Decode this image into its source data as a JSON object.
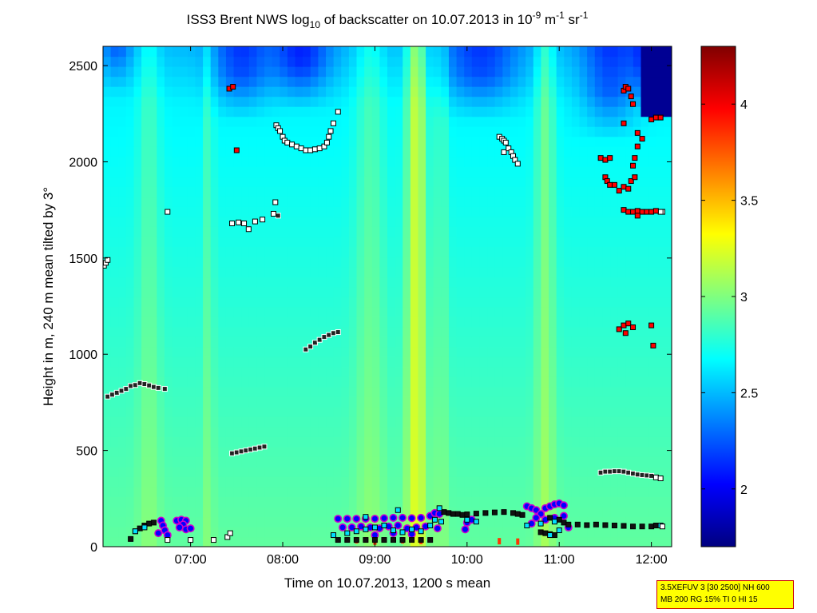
{
  "chart_data": {
    "type": "heatmap",
    "title": {
      "prefix": "ISS3 Brent NWS log",
      "sub": "10",
      "mid": " of backscatter on 10.07.2013 in 10",
      "exp1": "-9",
      "unit1": " m",
      "exp2": "-1",
      "unit2": " sr",
      "exp3": "-1"
    },
    "xlabel": "Time on 10.07.2013, 1200 s mean",
    "ylabel": "Height in m, 240 m mean tilted by 3°",
    "xlim_hours": [
      6.05,
      12.22
    ],
    "ylim": [
      0,
      2600
    ],
    "x_ticks": [
      {
        "value": 7,
        "label": "07:00"
      },
      {
        "value": 8,
        "label": "08:00"
      },
      {
        "value": 9,
        "label": "09:00"
      },
      {
        "value": 10,
        "label": "10:00"
      },
      {
        "value": 11,
        "label": "11:00"
      },
      {
        "value": 12,
        "label": "12:00"
      }
    ],
    "y_ticks": [
      {
        "value": 0,
        "label": "0"
      },
      {
        "value": 500,
        "label": "500"
      },
      {
        "value": 1000,
        "label": "1000"
      },
      {
        "value": 1500,
        "label": "1500"
      },
      {
        "value": 2000,
        "label": "2000"
      },
      {
        "value": 2500,
        "label": "2500"
      }
    ],
    "colorbar": {
      "colormap": "jet",
      "clim": [
        1.7,
        4.3
      ],
      "ticks": [
        {
          "value": 2,
          "label": "2"
        },
        {
          "value": 2.5,
          "label": "2.5"
        },
        {
          "value": 3,
          "label": "3"
        },
        {
          "value": 3.5,
          "label": "3.5"
        },
        {
          "value": 4,
          "label": "4"
        }
      ]
    },
    "field": {
      "base_low": 2.92,
      "base_high": 2.62,
      "plumes": [
        {
          "t": 6.55,
          "w": 0.12,
          "a": 0.18
        },
        {
          "t": 7.2,
          "w": 0.05,
          "a": 0.2
        },
        {
          "t": 8.95,
          "w": 0.16,
          "a": 0.2
        },
        {
          "t": 9.45,
          "w": 0.11,
          "a": 0.55
        },
        {
          "t": 9.72,
          "w": 0.07,
          "a": 0.18
        },
        {
          "t": 10.85,
          "w": 0.1,
          "a": 0.3
        }
      ],
      "blue_patches": [
        {
          "t": 6.2,
          "w": 0.15,
          "h": 2350,
          "a": 0.25
        },
        {
          "t": 7.55,
          "w": 0.3,
          "h": 2200,
          "a": 0.35
        },
        {
          "t": 8.2,
          "w": 0.3,
          "h": 2250,
          "a": 0.4
        },
        {
          "t": 10.15,
          "w": 0.4,
          "h": 2200,
          "a": 0.35
        },
        {
          "t": 11.55,
          "w": 0.3,
          "h": 2100,
          "a": 0.35
        },
        {
          "t": 12.05,
          "w": 0.22,
          "h": 2250,
          "a": 0.55
        }
      ],
      "dark_corner": {
        "t_start": 11.85,
        "h_start": 2250,
        "value": 1.75
      }
    },
    "layer_markers": {
      "white": [
        [
          6.06,
          1460
        ],
        [
          6.08,
          1475
        ],
        [
          6.1,
          1490
        ],
        [
          6.75,
          1740
        ],
        [
          7.45,
          1680
        ],
        [
          7.52,
          1685
        ],
        [
          7.58,
          1680
        ],
        [
          7.63,
          1650
        ],
        [
          7.7,
          1690
        ],
        [
          7.78,
          1700
        ],
        [
          7.9,
          1730
        ],
        [
          7.92,
          1790
        ],
        [
          7.93,
          2190
        ],
        [
          7.95,
          2175
        ],
        [
          7.97,
          2160
        ],
        [
          8.0,
          2130
        ],
        [
          8.02,
          2110
        ],
        [
          8.05,
          2100
        ],
        [
          8.1,
          2090
        ],
        [
          8.15,
          2080
        ],
        [
          8.2,
          2070
        ],
        [
          8.25,
          2060
        ],
        [
          8.3,
          2060
        ],
        [
          8.35,
          2065
        ],
        [
          8.4,
          2070
        ],
        [
          8.45,
          2080
        ],
        [
          8.48,
          2100
        ],
        [
          8.5,
          2130
        ],
        [
          8.52,
          2160
        ],
        [
          8.55,
          2200
        ],
        [
          8.6,
          2260
        ],
        [
          10.35,
          2130
        ],
        [
          10.38,
          2120
        ],
        [
          10.4,
          2110
        ],
        [
          10.42,
          2100
        ],
        [
          10.4,
          2050
        ],
        [
          10.45,
          2070
        ],
        [
          10.48,
          2050
        ],
        [
          10.5,
          2030
        ],
        [
          10.52,
          2010
        ],
        [
          10.55,
          1990
        ],
        [
          12.12,
          1740
        ],
        [
          12.1,
          1740
        ],
        [
          6.75,
          35
        ],
        [
          7.0,
          35
        ],
        [
          7.25,
          35
        ],
        [
          7.4,
          50
        ],
        [
          7.43,
          70
        ],
        [
          12.05,
          360
        ],
        [
          12.1,
          355
        ],
        [
          12.12,
          105
        ]
      ],
      "red": [
        [
          7.42,
          2380
        ],
        [
          7.46,
          2390
        ],
        [
          7.5,
          2060
        ],
        [
          11.45,
          2020
        ],
        [
          11.5,
          2010
        ],
        [
          11.55,
          2020
        ],
        [
          11.5,
          1920
        ],
        [
          11.52,
          1900
        ],
        [
          11.55,
          1880
        ],
        [
          11.6,
          1880
        ],
        [
          11.65,
          1850
        ],
        [
          11.7,
          1870
        ],
        [
          11.75,
          1860
        ],
        [
          11.78,
          1900
        ],
        [
          11.82,
          1920
        ],
        [
          11.7,
          2370
        ],
        [
          11.72,
          2390
        ],
        [
          11.75,
          2380
        ],
        [
          11.78,
          2340
        ],
        [
          11.8,
          2300
        ],
        [
          11.85,
          2150
        ],
        [
          11.9,
          2120
        ],
        [
          11.85,
          2080
        ],
        [
          11.82,
          2020
        ],
        [
          11.8,
          1980
        ],
        [
          12.0,
          2220
        ],
        [
          12.05,
          2230
        ],
        [
          12.1,
          2230
        ],
        [
          11.7,
          2200
        ],
        [
          11.7,
          1750
        ],
        [
          11.75,
          1740
        ],
        [
          11.8,
          1740
        ],
        [
          11.85,
          1745
        ],
        [
          11.9,
          1740
        ],
        [
          11.95,
          1740
        ],
        [
          12.0,
          1740
        ],
        [
          12.05,
          1745
        ],
        [
          11.85,
          1720
        ],
        [
          11.65,
          1130
        ],
        [
          11.7,
          1150
        ],
        [
          11.75,
          1160
        ],
        [
          11.8,
          1140
        ],
        [
          11.72,
          1110
        ],
        [
          12.0,
          1150
        ],
        [
          12.02,
          1045
        ]
      ],
      "black_white": [
        [
          6.1,
          780
        ],
        [
          6.15,
          790
        ],
        [
          6.2,
          800
        ],
        [
          6.25,
          810
        ],
        [
          6.3,
          820
        ],
        [
          6.35,
          835
        ],
        [
          6.4,
          840
        ],
        [
          6.45,
          850
        ],
        [
          6.5,
          845
        ],
        [
          6.55,
          838
        ],
        [
          6.6,
          830
        ],
        [
          6.65,
          825
        ],
        [
          6.72,
          820
        ],
        [
          7.45,
          485
        ],
        [
          7.5,
          490
        ],
        [
          7.55,
          495
        ],
        [
          7.6,
          500
        ],
        [
          7.65,
          505
        ],
        [
          7.7,
          510
        ],
        [
          7.75,
          515
        ],
        [
          7.8,
          520
        ],
        [
          7.95,
          1720
        ],
        [
          8.25,
          1025
        ],
        [
          8.3,
          1040
        ],
        [
          8.35,
          1060
        ],
        [
          8.4,
          1075
        ],
        [
          8.45,
          1090
        ],
        [
          8.5,
          1100
        ],
        [
          8.55,
          1110
        ],
        [
          8.6,
          1115
        ],
        [
          11.45,
          385
        ],
        [
          11.5,
          390
        ],
        [
          11.55,
          390
        ],
        [
          11.6,
          392
        ],
        [
          11.65,
          392
        ],
        [
          11.7,
          390
        ],
        [
          11.75,
          385
        ],
        [
          11.8,
          380
        ],
        [
          11.85,
          375
        ],
        [
          11.9,
          372
        ],
        [
          11.95,
          370
        ],
        [
          12.0,
          368
        ]
      ],
      "black": [
        [
          6.35,
          40
        ],
        [
          6.4,
          80
        ],
        [
          6.45,
          95
        ],
        [
          6.5,
          110
        ],
        [
          6.55,
          120
        ],
        [
          6.6,
          125
        ],
        [
          8.6,
          35
        ],
        [
          8.7,
          35
        ],
        [
          8.8,
          35
        ],
        [
          8.9,
          35
        ],
        [
          9.0,
          35
        ],
        [
          9.1,
          35
        ],
        [
          9.2,
          35
        ],
        [
          9.3,
          35
        ],
        [
          9.4,
          35
        ],
        [
          9.5,
          35
        ],
        [
          9.6,
          35
        ],
        [
          9.75,
          180
        ],
        [
          9.8,
          175
        ],
        [
          9.85,
          170
        ],
        [
          9.9,
          170
        ],
        [
          9.95,
          165
        ],
        [
          10.0,
          168
        ],
        [
          10.1,
          172
        ],
        [
          10.2,
          175
        ],
        [
          10.3,
          178
        ],
        [
          10.4,
          180
        ],
        [
          10.5,
          175
        ],
        [
          10.55,
          170
        ],
        [
          10.6,
          165
        ],
        [
          10.9,
          150
        ],
        [
          11.0,
          140
        ],
        [
          11.05,
          125
        ],
        [
          11.1,
          115
        ],
        [
          11.2,
          115
        ],
        [
          11.3,
          112
        ],
        [
          11.4,
          115
        ],
        [
          11.5,
          112
        ],
        [
          11.6,
          110
        ],
        [
          11.7,
          108
        ],
        [
          11.8,
          105
        ],
        [
          11.9,
          105
        ],
        [
          12.0,
          105
        ],
        [
          12.05,
          110
        ],
        [
          10.8,
          75
        ],
        [
          10.85,
          70
        ],
        [
          10.9,
          65
        ],
        [
          10.95,
          60
        ]
      ],
      "cyan": [
        [
          6.4,
          80
        ],
        [
          6.5,
          100
        ],
        [
          8.55,
          60
        ],
        [
          8.7,
          70
        ],
        [
          8.8,
          80
        ],
        [
          8.9,
          90
        ],
        [
          9.0,
          100
        ],
        [
          9.1,
          110
        ],
        [
          9.2,
          85
        ],
        [
          9.3,
          75
        ],
        [
          9.4,
          90
        ],
        [
          9.5,
          80
        ],
        [
          9.6,
          110
        ],
        [
          9.65,
          140
        ],
        [
          9.72,
          130
        ],
        [
          9.7,
          200
        ],
        [
          8.9,
          155
        ],
        [
          10.0,
          140
        ],
        [
          10.65,
          110
        ],
        [
          10.8,
          120
        ],
        [
          10.95,
          130
        ],
        [
          11.0,
          85
        ],
        [
          10.9,
          60
        ],
        [
          12.1,
          110
        ],
        [
          9.25,
          190
        ],
        [
          10.1,
          130
        ]
      ],
      "purple_dots": [
        [
          6.68,
          135
        ],
        [
          6.7,
          110
        ],
        [
          6.72,
          85
        ],
        [
          6.65,
          70
        ],
        [
          6.75,
          60
        ],
        [
          6.85,
          135
        ],
        [
          6.9,
          140
        ],
        [
          6.95,
          135
        ],
        [
          6.92,
          115
        ],
        [
          6.88,
          100
        ],
        [
          6.95,
          90
        ],
        [
          7.0,
          95
        ],
        [
          8.6,
          145
        ],
        [
          8.7,
          145
        ],
        [
          8.8,
          145
        ],
        [
          8.9,
          145
        ],
        [
          9.0,
          145
        ],
        [
          9.1,
          148
        ],
        [
          9.2,
          150
        ],
        [
          9.3,
          150
        ],
        [
          9.4,
          148
        ],
        [
          9.5,
          150
        ],
        [
          9.6,
          160
        ],
        [
          9.65,
          175
        ],
        [
          9.7,
          170
        ],
        [
          8.65,
          100
        ],
        [
          8.75,
          100
        ],
        [
          8.85,
          105
        ],
        [
          8.95,
          100
        ],
        [
          9.05,
          95
        ],
        [
          9.15,
          105
        ],
        [
          9.25,
          110
        ],
        [
          9.35,
          95
        ],
        [
          9.45,
          100
        ],
        [
          9.55,
          105
        ],
        [
          9.68,
          95
        ],
        [
          9.0,
          60
        ],
        [
          9.2,
          70
        ],
        [
          9.4,
          65
        ],
        [
          10.0,
          125
        ],
        [
          10.05,
          140
        ],
        [
          9.98,
          90
        ],
        [
          10.65,
          210
        ],
        [
          10.7,
          200
        ],
        [
          10.75,
          190
        ],
        [
          10.8,
          170
        ],
        [
          10.85,
          200
        ],
        [
          10.9,
          210
        ],
        [
          10.95,
          220
        ],
        [
          11.0,
          225
        ],
        [
          11.05,
          215
        ],
        [
          10.75,
          150
        ],
        [
          10.85,
          140
        ],
        [
          10.95,
          150
        ],
        [
          11.05,
          160
        ],
        [
          10.7,
          120
        ],
        [
          11.1,
          100
        ]
      ],
      "red_dots": [
        [
          8.8,
          25
        ],
        [
          9.0,
          18
        ],
        [
          9.3,
          25
        ],
        [
          9.5,
          22
        ],
        [
          10.35,
          20
        ],
        [
          10.55,
          18
        ]
      ]
    }
  },
  "infobox": {
    "line1": "3.5XEFUV 3 [30 2500] NH 600",
    "line2": "MB 200 RG 15% TI 0 HI 15"
  }
}
